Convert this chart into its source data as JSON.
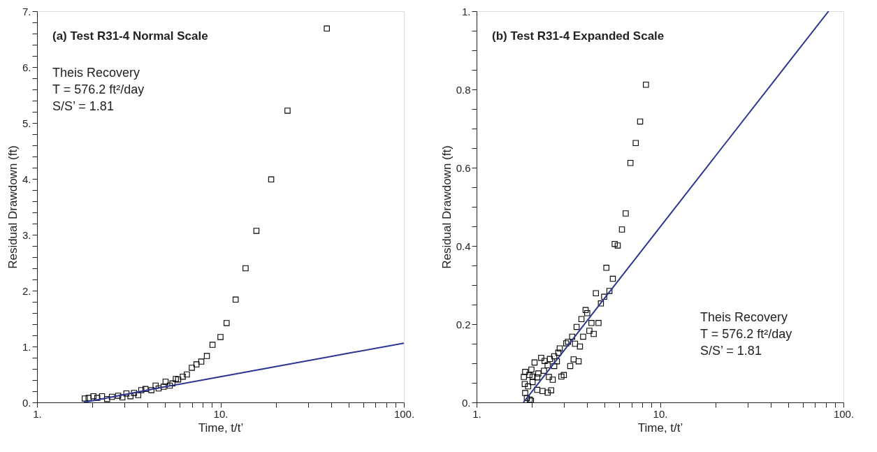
{
  "chart_data": [
    {
      "type": "scatter",
      "title": "(a)  Test R31-4 Normal Scale",
      "xlabel": "Time, t/t’",
      "ylabel": "Residual Drawdown (ft)",
      "log": "x",
      "grid": false,
      "annotations": [
        "Theis Recovery",
        "T = 576.2 ft²/day",
        "S/S’ = 1.81"
      ],
      "xlim": [
        1,
        100
      ],
      "xticks": [
        {
          "value": 1,
          "label": "1."
        },
        {
          "value": 2,
          "label": null
        },
        {
          "value": 3,
          "label": null
        },
        {
          "value": 4,
          "label": null
        },
        {
          "value": 5,
          "label": null
        },
        {
          "value": 6,
          "label": null
        },
        {
          "value": 7,
          "label": null
        },
        {
          "value": 8,
          "label": null
        },
        {
          "value": 9,
          "label": null
        },
        {
          "value": 10,
          "label": "10."
        },
        {
          "value": 20,
          "label": null
        },
        {
          "value": 30,
          "label": null
        },
        {
          "value": 40,
          "label": null
        },
        {
          "value": 50,
          "label": null
        },
        {
          "value": 60,
          "label": null
        },
        {
          "value": 70,
          "label": null
        },
        {
          "value": 80,
          "label": null
        },
        {
          "value": 90,
          "label": null
        },
        {
          "value": 100,
          "label": "100."
        }
      ],
      "ylim": [
        0,
        7
      ],
      "yticks": [
        {
          "value": 0,
          "label": "0."
        },
        {
          "value": 0.2,
          "label": null
        },
        {
          "value": 0.4,
          "label": null
        },
        {
          "value": 0.6,
          "label": null
        },
        {
          "value": 0.8,
          "label": null
        },
        {
          "value": 1,
          "label": "1."
        },
        {
          "value": 1.2,
          "label": null
        },
        {
          "value": 1.4,
          "label": null
        },
        {
          "value": 1.6,
          "label": null
        },
        {
          "value": 1.8,
          "label": null
        },
        {
          "value": 2,
          "label": "2."
        },
        {
          "value": 2.2,
          "label": null
        },
        {
          "value": 2.4,
          "label": null
        },
        {
          "value": 2.6,
          "label": null
        },
        {
          "value": 2.8,
          "label": null
        },
        {
          "value": 3,
          "label": "3."
        },
        {
          "value": 3.2,
          "label": null
        },
        {
          "value": 3.4,
          "label": null
        },
        {
          "value": 3.6,
          "label": null
        },
        {
          "value": 3.8,
          "label": null
        },
        {
          "value": 4,
          "label": "4."
        },
        {
          "value": 4.2,
          "label": null
        },
        {
          "value": 4.4,
          "label": null
        },
        {
          "value": 4.6,
          "label": null
        },
        {
          "value": 4.8,
          "label": null
        },
        {
          "value": 5,
          "label": "5."
        },
        {
          "value": 5.2,
          "label": null
        },
        {
          "value": 5.4,
          "label": null
        },
        {
          "value": 5.6,
          "label": null
        },
        {
          "value": 5.8,
          "label": null
        },
        {
          "value": 6,
          "label": "6."
        },
        {
          "value": 6.2,
          "label": null
        },
        {
          "value": 6.4,
          "label": null
        },
        {
          "value": 6.6,
          "label": null
        },
        {
          "value": 6.8,
          "label": null
        },
        {
          "value": 7,
          "label": "7."
        }
      ],
      "series": [
        {
          "type": "scatter",
          "marker": "square",
          "color": "#000000",
          "x": [
            1.82,
            1.91,
            2.03,
            2.13,
            2.26,
            2.41,
            2.56,
            2.77,
            2.92,
            3.07,
            3.23,
            3.38,
            3.56,
            3.7,
            3.9,
            4.2,
            4.43,
            4.6,
            4.9,
            5.02,
            5.29,
            5.47,
            5.71,
            5.88,
            6.23,
            6.56,
            6.98,
            7.4,
            7.86,
            8.43,
            9.05,
            10.0,
            10.8,
            12.1,
            13.7,
            15.7,
            18.9,
            23.2,
            38
          ],
          "values": [
            0.07,
            0.08,
            0.11,
            0.08,
            0.11,
            0.06,
            0.1,
            0.12,
            0.09,
            0.16,
            0.11,
            0.17,
            0.13,
            0.22,
            0.24,
            0.22,
            0.3,
            0.25,
            0.28,
            0.37,
            0.3,
            0.34,
            0.42,
            0.41,
            0.46,
            0.5,
            0.62,
            0.68,
            0.73,
            0.83,
            1.03,
            1.17,
            1.42,
            1.84,
            2.4,
            3.07,
            3.99,
            5.22,
            6.69
          ]
        },
        {
          "type": "line",
          "marker": "none",
          "color": "#2b3593",
          "x": [
            1.8,
            3,
            5,
            10,
            20,
            50,
            100
          ],
          "values": [
            0,
            0.14,
            0.28,
            0.46,
            0.64,
            0.88,
            1.06
          ]
        }
      ]
    },
    {
      "type": "scatter",
      "title": "(b)  Test R31-4 Expanded Scale",
      "xlabel": "Time, t/t’",
      "ylabel": "Residual Drawdown (ft)",
      "log": "x",
      "grid": false,
      "annotations": [
        "Theis Recovery",
        "T = 576.2 ft²/day",
        "S/S’ = 1.81"
      ],
      "xlim": [
        1,
        100
      ],
      "xticks": [
        {
          "value": 1,
          "label": "1."
        },
        {
          "value": 2,
          "label": null
        },
        {
          "value": 3,
          "label": null
        },
        {
          "value": 4,
          "label": null
        },
        {
          "value": 5,
          "label": null
        },
        {
          "value": 6,
          "label": null
        },
        {
          "value": 7,
          "label": null
        },
        {
          "value": 8,
          "label": null
        },
        {
          "value": 9,
          "label": null
        },
        {
          "value": 10,
          "label": "10."
        },
        {
          "value": 20,
          "label": null
        },
        {
          "value": 30,
          "label": null
        },
        {
          "value": 40,
          "label": null
        },
        {
          "value": 50,
          "label": null
        },
        {
          "value": 60,
          "label": null
        },
        {
          "value": 70,
          "label": null
        },
        {
          "value": 80,
          "label": null
        },
        {
          "value": 90,
          "label": null
        },
        {
          "value": 100,
          "label": "100."
        }
      ],
      "ylim": [
        0,
        1
      ],
      "yticks": [
        {
          "value": 0,
          "label": "0."
        },
        {
          "value": 0.05,
          "label": null
        },
        {
          "value": 0.1,
          "label": null
        },
        {
          "value": 0.15,
          "label": null
        },
        {
          "value": 0.2,
          "label": "0.2"
        },
        {
          "value": 0.25,
          "label": null
        },
        {
          "value": 0.3,
          "label": null
        },
        {
          "value": 0.35,
          "label": null
        },
        {
          "value": 0.4,
          "label": "0.4"
        },
        {
          "value": 0.45,
          "label": null
        },
        {
          "value": 0.5,
          "label": null
        },
        {
          "value": 0.55,
          "label": null
        },
        {
          "value": 0.6,
          "label": "0.6"
        },
        {
          "value": 0.65,
          "label": null
        },
        {
          "value": 0.7,
          "label": null
        },
        {
          "value": 0.75,
          "label": null
        },
        {
          "value": 0.8,
          "label": "0.8"
        },
        {
          "value": 0.85,
          "label": null
        },
        {
          "value": 0.9,
          "label": null
        },
        {
          "value": 0.95,
          "label": null
        },
        {
          "value": 1,
          "label": "1."
        }
      ],
      "series": [
        {
          "type": "scatter",
          "marker": "square",
          "color": "#000000",
          "x": [
            1.81,
            1.83,
            1.84,
            1.84,
            1.88,
            1.91,
            1.94,
            1.95,
            1.98,
            1.99,
            2.02,
            2.02,
            2.07,
            2.14,
            2.14,
            2.17,
            2.25,
            2.29,
            2.33,
            2.35,
            2.44,
            2.44,
            2.48,
            2.51,
            2.55,
            2.6,
            2.65,
            2.65,
            2.74,
            2.79,
            2.84,
            2.9,
            2.99,
            3.08,
            3.15,
            3.24,
            3.32,
            3.38,
            3.44,
            3.51,
            3.6,
            3.66,
            3.73,
            3.81,
            3.93,
            4.01,
            4.12,
            4.23,
            4.35,
            4.47,
            4.62,
            4.76,
            4.96,
            5.1,
            5.3,
            5.53,
            5.66,
            5.88,
            6.2,
            6.5,
            6.9,
            7.37,
            7.79,
            8.38
          ],
          "values": [
            0.065,
            0.047,
            0.078,
            0.024,
            0.011,
            0.041,
            0.07,
            0.007,
            0.004,
            0.084,
            0.066,
            0.052,
            0.102,
            0.064,
            0.032,
            0.074,
            0.114,
            0.029,
            0.081,
            0.106,
            0.095,
            0.025,
            0.065,
            0.111,
            0.031,
            0.058,
            0.118,
            0.093,
            0.105,
            0.127,
            0.138,
            0.066,
            0.07,
            0.151,
            0.155,
            0.093,
            0.168,
            0.11,
            0.15,
            0.193,
            0.105,
            0.143,
            0.213,
            0.168,
            0.236,
            0.228,
            0.183,
            0.203,
            0.175,
            0.279,
            0.203,
            0.253,
            0.27,
            0.344,
            0.285,
            0.316,
            0.405,
            0.401,
            0.442,
            0.483,
            0.612,
            0.663,
            0.718,
            0.812
          ]
        },
        {
          "type": "line",
          "marker": "none",
          "color": "#2b3593",
          "x": [
            1.8,
            3,
            5,
            10,
            20,
            50,
            83
          ],
          "values": [
            0,
            0.133,
            0.267,
            0.448,
            0.629,
            0.868,
            1.0
          ]
        }
      ]
    }
  ]
}
